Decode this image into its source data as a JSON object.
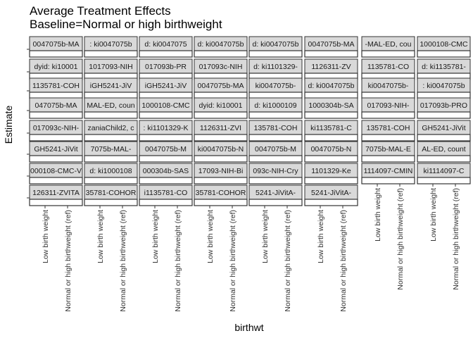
{
  "chart_data": {
    "type": "scatter",
    "title": "Average Treatment Effects",
    "subtitle": "Baseline=Normal or high birthweight",
    "xlabel": "birthwt",
    "ylabel": "Estimate",
    "x_categories": [
      "Low birth weight",
      "Normal or high birthweight (ref)"
    ],
    "y_tick_labels": [
      "",
      "",
      "",
      "",
      "",
      "",
      "",
      ""
    ],
    "panels": [
      [
        "0047075b-MA",
        ": ki0047075b",
        "d: ki0047075",
        "d: ki0047075b",
        "d: ki0047075b",
        "0047075b-MA",
        "-MAL-ED, cou",
        "1000108-CMC"
      ],
      [
        "dyid: ki10001",
        "1017093-NIH",
        "017093b-PR",
        "017093c-NIH",
        "d: ki1101329-",
        "1126311-ZV",
        "1135781-CO",
        "d: ki1135781-"
      ],
      [
        "1135781-COH",
        "iGH5241-JiV",
        "iGH5241-JiV",
        "0047075b-MA",
        "ki0047075b-",
        "d: ki0047075b",
        "ki0047075b-",
        ": ki0047075b"
      ],
      [
        "047075b-MA",
        "MAL-ED, coun",
        "1000108-CMC",
        "dyid: ki10001",
        "d: ki1000109",
        "1000304b-SA",
        "017093-NIH-",
        "017093b-PRO"
      ],
      [
        "017093c-NIH-",
        "zaniaChild2, c",
        ": ki1101329-K",
        "1126311-ZVI",
        "135781-COH",
        "ki1135781-C",
        "135781-COH",
        "GH5241-JiVit"
      ],
      [
        "GH5241-JiVit",
        "7075b-MAL-",
        "0047075b-M",
        "ki0047075b-N",
        "0047075b-M",
        "0047075b-N",
        "7075b-MAL-E",
        "AL-ED, count"
      ],
      [
        "000108-CMC-V",
        "d: ki1000108",
        "000304b-SAS",
        "17093-NIH-Bi",
        "093c-NIH-Cry",
        "1101329-Ke",
        "1114097-CMIN",
        "ki1114097-C"
      ],
      [
        "126311-ZVITA",
        "35781-COHOR",
        "i1135781-CO",
        "35781-COHOR",
        "5241-JiVitA-",
        "5241-JiVitA-",
        "",
        ""
      ]
    ]
  }
}
